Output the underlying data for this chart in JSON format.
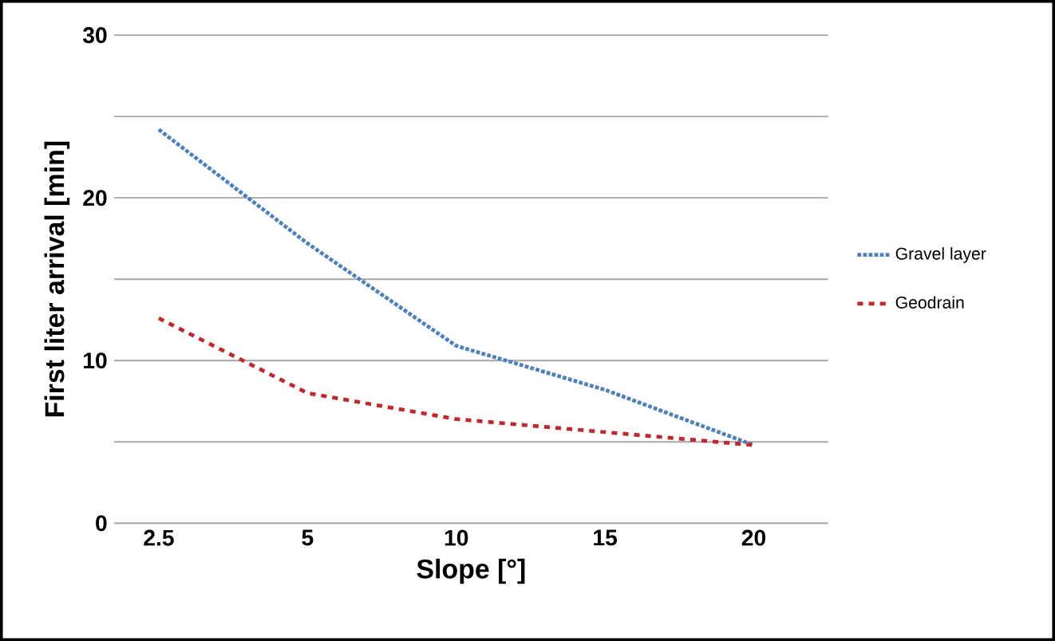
{
  "chart_data": {
    "type": "line",
    "xlabel": "Slope [°]",
    "ylabel": "First liter arrival  [min]",
    "categories": [
      "2.5",
      "5",
      "10",
      "15",
      "20"
    ],
    "series": [
      {
        "name": "Gravel layer",
        "color": "#4a7fc1",
        "line_style": "dotted",
        "values": [
          24.2,
          17.2,
          10.9,
          8.2,
          4.8
        ]
      },
      {
        "name": "Geodrain",
        "color": "#c0282d",
        "line_style": "dashed",
        "values": [
          12.6,
          8.0,
          6.4,
          5.6,
          4.8
        ]
      }
    ],
    "ylim": [
      0,
      30
    ],
    "yticks": [
      0,
      {
        "value": 5,
        "label": null
      },
      10,
      {
        "value": 15,
        "label": null
      },
      20,
      {
        "value": 25,
        "label": null
      },
      30
    ],
    "grid": "y",
    "legend": "right",
    "marker": "none"
  }
}
